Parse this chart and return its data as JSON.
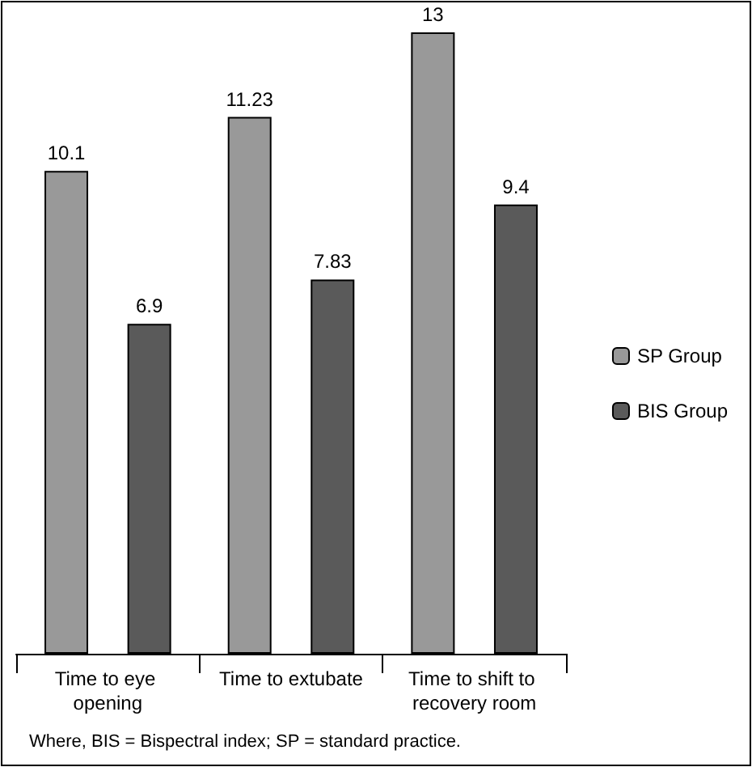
{
  "chart_data": {
    "type": "bar",
    "categories": [
      "Time to eye opening",
      "Time to extubate",
      "Time to shift to recovery room"
    ],
    "series": [
      {
        "name": "SP Group",
        "color": "#999999",
        "values": [
          10.1,
          11.23,
          13
        ]
      },
      {
        "name": "BIS Group",
        "color": "#5a5a5a",
        "values": [
          6.9,
          7.83,
          9.4
        ]
      }
    ],
    "data_labels": true,
    "grid": false,
    "legend": "right",
    "annotations": [
      "Where, BIS = Bispectral index; SP = standard practice."
    ]
  }
}
